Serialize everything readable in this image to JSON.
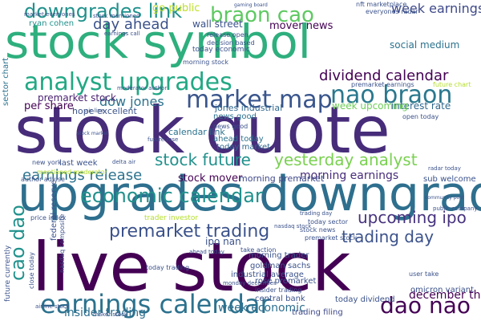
{
  "word_cloud": {
    "words": [
      {
        "text": "stock symbol",
        "color": "#2eaf7d"
      },
      {
        "text": "stock quote",
        "color": "#472c7a"
      },
      {
        "text": "upgrades downgrades",
        "color": "#2e6f8e"
      },
      {
        "text": "live stock",
        "color": "#440154"
      },
      {
        "text": "earnings calendar",
        "color": "#2c728e"
      },
      {
        "text": "analyst upgrades",
        "color": "#22a884"
      },
      {
        "text": "market map",
        "color": "#39558c"
      },
      {
        "text": "nao braon",
        "color": "#2a788e"
      },
      {
        "text": "economic calendar",
        "color": "#21918c"
      },
      {
        "text": "premarket trading",
        "color": "#3b528b"
      },
      {
        "text": "braon cao",
        "color": "#5ec962"
      },
      {
        "text": "downgrades link",
        "color": "#21918c"
      },
      {
        "text": "dividend calendar",
        "color": "#440154"
      },
      {
        "text": "stock future",
        "color": "#21918c"
      },
      {
        "text": "yesterday analyst",
        "color": "#7ad151"
      },
      {
        "text": "upcoming ipo",
        "color": "#46327e"
      },
      {
        "text": "dao nao",
        "color": "#440154"
      },
      {
        "text": "cao dao",
        "color": "#21918c"
      },
      {
        "text": "trading day",
        "color": "#3b528b"
      },
      {
        "text": "earnings release",
        "color": "#2c728e"
      },
      {
        "text": "day ahead",
        "color": "#3b528b"
      },
      {
        "text": "week earnings",
        "color": "#3e4989"
      },
      {
        "text": "dow jones",
        "color": "#2c728e"
      },
      {
        "text": "insider trading",
        "color": "#2e6f8e"
      },
      {
        "text": "week economic",
        "color": "#2e6f8e"
      },
      {
        "text": "morning earnings",
        "color": "#472c7a"
      },
      {
        "text": "interest rate",
        "color": "#31688e"
      },
      {
        "text": "social medium",
        "color": "#2c728e"
      },
      {
        "text": "week upcoming",
        "color": "#6ece58"
      },
      {
        "text": "per share",
        "color": "#440154"
      },
      {
        "text": "premarket stock",
        "color": "#481f70"
      },
      {
        "text": "december th",
        "color": "#440154"
      },
      {
        "text": "stock mover",
        "color": "#440154"
      },
      {
        "text": "mover news",
        "color": "#440154"
      },
      {
        "text": "go public",
        "color": "#bddf26"
      },
      {
        "text": "wall street",
        "color": "#3b528b"
      },
      {
        "text": "morning premarket",
        "color": "#3e4989"
      },
      {
        "text": "jones industrial",
        "color": "#31688e"
      },
      {
        "text": "calendar link",
        "color": "#2c728e"
      },
      {
        "text": "today market",
        "color": "#31688e"
      },
      {
        "text": "news good",
        "color": "#2c728e"
      },
      {
        "text": "ahead today",
        "color": "#2c728e"
      },
      {
        "text": "hope excellent",
        "color": "#3b528b"
      },
      {
        "text": "last week",
        "color": "#3b528b"
      },
      {
        "text": "sub welcome",
        "color": "#3b528b"
      },
      {
        "text": "ryan cohen",
        "color": "#21918c"
      },
      {
        "text": "sector chart",
        "color": "#2c728e"
      },
      {
        "text": "goldman sachs",
        "color": "#3b528b"
      },
      {
        "text": "industrial average",
        "color": "#3b528b"
      },
      {
        "text": "rose premarket",
        "color": "#3b528b"
      },
      {
        "text": "central bank",
        "color": "#3b528b"
      },
      {
        "text": "trading filing",
        "color": "#3e4989"
      },
      {
        "text": "today dividend",
        "color": "#3b528b"
      },
      {
        "text": "omicron variant",
        "color": "#3b528b"
      },
      {
        "text": "morning trader",
        "color": "#3b528b"
      },
      {
        "text": "federal reserve",
        "color": "#3b528b"
      },
      {
        "text": "ipo nan",
        "color": "#3b528b"
      },
      {
        "text": "premarket earnings",
        "color": "#3b528b"
      },
      {
        "text": "future chart",
        "color": "#b5de2b"
      },
      {
        "text": "today economic",
        "color": "#3b528b"
      },
      {
        "text": "morning stock",
        "color": "#3b528b"
      },
      {
        "text": "news good",
        "color": "#3b528b"
      },
      {
        "text": "today sector",
        "color": "#3b528b"
      },
      {
        "text": "stock news",
        "color": "#3b528b"
      },
      {
        "text": "premarket stock",
        "color": "#3b528b"
      },
      {
        "text": "nasdaq composite",
        "color": "#3b528b"
      },
      {
        "text": "close today",
        "color": "#3b528b"
      },
      {
        "text": "future currently",
        "color": "#3b528b"
      },
      {
        "text": "mentioned moderator",
        "color": "#b5de2b"
      },
      {
        "text": "author advise",
        "color": "#3b528b"
      },
      {
        "text": "new york",
        "color": "#3b528b"
      },
      {
        "text": "open today",
        "color": "#3b528b"
      },
      {
        "text": "release open",
        "color": "#3b528b"
      },
      {
        "text": "decision based",
        "color": "#3b528b"
      },
      {
        "text": "take action",
        "color": "#3b528b"
      },
      {
        "text": "user take",
        "color": "#3b528b"
      },
      {
        "text": "insider trading",
        "color": "#3b528b"
      },
      {
        "text": "today trading",
        "color": "#3b528b"
      },
      {
        "text": "nft marketplace",
        "color": "#3b528b"
      },
      {
        "text": "everyones radar",
        "color": "#3b528b"
      },
      {
        "text": "trader investor",
        "color": "#b5de2b"
      },
      {
        "text": "price index",
        "color": "#3b528b"
      },
      {
        "text": "market everyones",
        "color": "#3b528b"
      },
      {
        "text": "gaming board",
        "color": "#3b528b"
      },
      {
        "text": "earnings call",
        "color": "#3b528b"
      },
      {
        "text": "stock mentioned",
        "color": "#3b528b"
      },
      {
        "text": "monday december",
        "color": "#3b528b"
      },
      {
        "text": "nasdaq stock",
        "color": "#3b528b"
      },
      {
        "text": "public company",
        "color": "#3b528b"
      },
      {
        "text": "community post",
        "color": "#3b528b"
      },
      {
        "text": "stock market",
        "color": "#3b528b"
      },
      {
        "text": "airline stock",
        "color": "#3b528b"
      },
      {
        "text": "maker stock",
        "color": "#3b528b"
      },
      {
        "text": "trading day",
        "color": "#3b528b"
      },
      {
        "text": "future rose",
        "color": "#3b528b"
      },
      {
        "text": "radar today",
        "color": "#3b528b"
      },
      {
        "text": "delta air",
        "color": "#3b528b"
      },
      {
        "text": "air line",
        "color": "#3b528b"
      },
      {
        "text": "moderator author",
        "color": "#3b528b"
      },
      {
        "text": "ahead today",
        "color": "#3b528b"
      }
    ]
  }
}
